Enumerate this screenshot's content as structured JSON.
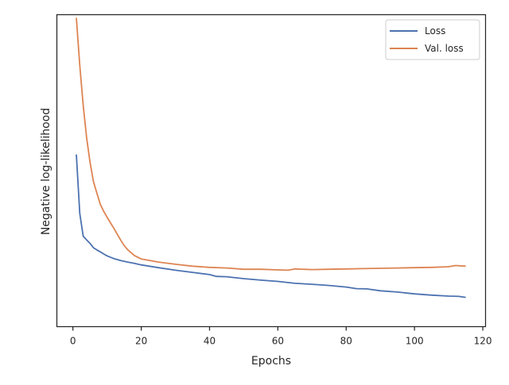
{
  "chart_data": {
    "type": "line",
    "title": "",
    "xlabel": "Epochs",
    "ylabel": "Negative log-likelihood",
    "xlim": [
      -4.7,
      120.8
    ],
    "ylim": [
      0,
      1
    ],
    "x_ticks": [
      0,
      20,
      40,
      60,
      80,
      100,
      120
    ],
    "y_ticks_shown": false,
    "grid": false,
    "legend_position": "top-right",
    "y_values_note": "y axis has no tick labels; values are relative (0 = bottom of axes, 1 = top)",
    "series": [
      {
        "name": "Loss",
        "color": "#4c72b0",
        "points": [
          [
            1,
            0.552
          ],
          [
            2,
            0.363
          ],
          [
            3,
            0.29
          ],
          [
            4,
            0.278
          ],
          [
            5,
            0.267
          ],
          [
            6,
            0.253
          ],
          [
            7,
            0.246
          ],
          [
            8,
            0.24
          ],
          [
            9,
            0.233
          ],
          [
            10,
            0.227
          ],
          [
            12,
            0.218
          ],
          [
            14,
            0.212
          ],
          [
            16,
            0.207
          ],
          [
            18,
            0.203
          ],
          [
            20,
            0.198
          ],
          [
            25,
            0.189
          ],
          [
            30,
            0.181
          ],
          [
            35,
            0.174
          ],
          [
            40,
            0.167
          ],
          [
            42,
            0.161
          ],
          [
            45,
            0.16
          ],
          [
            50,
            0.154
          ],
          [
            55,
            0.149
          ],
          [
            60,
            0.145
          ],
          [
            65,
            0.139
          ],
          [
            70,
            0.136
          ],
          [
            75,
            0.132
          ],
          [
            80,
            0.127
          ],
          [
            83,
            0.122
          ],
          [
            86,
            0.121
          ],
          [
            90,
            0.115
          ],
          [
            95,
            0.111
          ],
          [
            100,
            0.105
          ],
          [
            105,
            0.101
          ],
          [
            110,
            0.098
          ],
          [
            113,
            0.097
          ],
          [
            115,
            0.094
          ]
        ]
      },
      {
        "name": "Val. loss",
        "color": "#dd8452",
        "points": [
          [
            1,
            0.99
          ],
          [
            2,
            0.838
          ],
          [
            3,
            0.71
          ],
          [
            4,
            0.606
          ],
          [
            5,
            0.527
          ],
          [
            6,
            0.465
          ],
          [
            7,
            0.429
          ],
          [
            8,
            0.393
          ],
          [
            9,
            0.37
          ],
          [
            10,
            0.351
          ],
          [
            11,
            0.333
          ],
          [
            12,
            0.315
          ],
          [
            13,
            0.296
          ],
          [
            14,
            0.277
          ],
          [
            15,
            0.26
          ],
          [
            16,
            0.247
          ],
          [
            18,
            0.228
          ],
          [
            20,
            0.217
          ],
          [
            25,
            0.207
          ],
          [
            30,
            0.2
          ],
          [
            35,
            0.194
          ],
          [
            40,
            0.19
          ],
          [
            45,
            0.188
          ],
          [
            50,
            0.184
          ],
          [
            55,
            0.184
          ],
          [
            60,
            0.182
          ],
          [
            63,
            0.181
          ],
          [
            65,
            0.185
          ],
          [
            70,
            0.183
          ],
          [
            75,
            0.184
          ],
          [
            80,
            0.185
          ],
          [
            85,
            0.186
          ],
          [
            90,
            0.187
          ],
          [
            95,
            0.188
          ],
          [
            100,
            0.189
          ],
          [
            105,
            0.19
          ],
          [
            110,
            0.192
          ],
          [
            112,
            0.196
          ],
          [
            115,
            0.194
          ]
        ]
      }
    ]
  }
}
